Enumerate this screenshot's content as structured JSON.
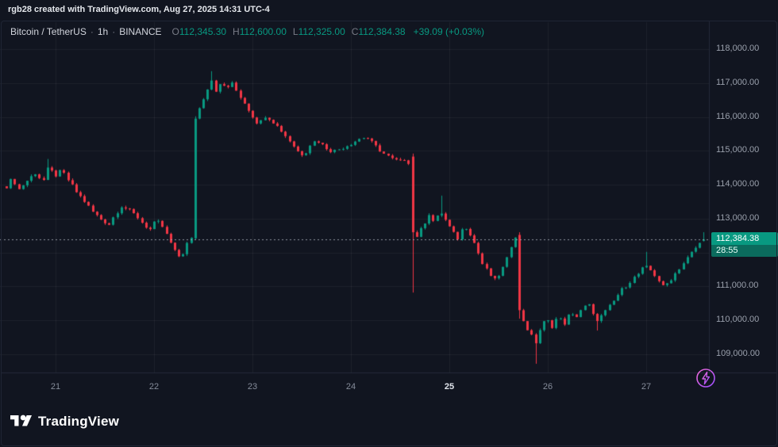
{
  "watermark": "rgb28 created with TradingView.com, Aug 27, 2025 14:31 UTC-4",
  "header": {
    "symbol": "Bitcoin / TetherUS",
    "sep": "·",
    "interval": "1h",
    "exchange": "BINANCE",
    "ohlc": [
      {
        "label": "O",
        "value": "112,345.30"
      },
      {
        "label": "H",
        "value": "112,600.00"
      },
      {
        "label": "L",
        "value": "112,325.00"
      },
      {
        "label": "C",
        "value": "112,384.38"
      }
    ],
    "change": "+39.09 (+0.03%)"
  },
  "branding": {
    "logo_text": "TradingView"
  },
  "colors": {
    "up": "#089981",
    "down": "#f23645",
    "grid": "rgba(255,255,255,0.055)",
    "axis_border": "#242a3a",
    "price_line": "rgba(178,183,192,0.8)",
    "badge_bg": "#089981",
    "countdown_bg": "#0b6b5d",
    "flash": "#c84df0"
  },
  "chart_data": {
    "type": "candlestick",
    "title": "Bitcoin / TetherUS 1h BINANCE",
    "exchange": "BINANCE",
    "interval": "1h",
    "last_price": 112384.38,
    "last_price_label": "112,384.38",
    "countdown": "28:55",
    "last_candle": {
      "open": 112345.3,
      "high": 112600.0,
      "low": 112325.0,
      "close": 112384.38
    },
    "x_unit": "day of August 2025",
    "x_domain": [
      20.5,
      27.583
    ],
    "y_domain": [
      108580,
      118750
    ],
    "candles_per_day": 24,
    "y_ticks": [
      {
        "value": 118000,
        "label": "118,000.00"
      },
      {
        "value": 117000,
        "label": "117,000.00"
      },
      {
        "value": 116000,
        "label": "116,000.00"
      },
      {
        "value": 115000,
        "label": "115,000.00"
      },
      {
        "value": 114000,
        "label": "114,000.00"
      },
      {
        "value": 113000,
        "label": "113,000.00"
      },
      {
        "value": 112000,
        "label": "112,000.00"
      },
      {
        "value": 111000,
        "label": "111,000.00"
      },
      {
        "value": 110000,
        "label": "110,000.00"
      },
      {
        "value": 109000,
        "label": "109,000.00"
      }
    ],
    "x_ticks": [
      {
        "t": 21,
        "label": "21",
        "bold": false
      },
      {
        "t": 22,
        "label": "22",
        "bold": false
      },
      {
        "t": 23,
        "label": "23",
        "bold": false
      },
      {
        "t": 24,
        "label": "24",
        "bold": false
      },
      {
        "t": 25,
        "label": "25",
        "bold": true
      },
      {
        "t": 26,
        "label": "26",
        "bold": false
      },
      {
        "t": 27,
        "label": "27",
        "bold": false
      }
    ],
    "waypoints": [
      [
        20.5,
        113950
      ],
      [
        20.56,
        114200
      ],
      [
        20.62,
        113850
      ],
      [
        20.7,
        114100
      ],
      [
        20.79,
        114350
      ],
      [
        20.87,
        114100
      ],
      [
        20.92,
        114480
      ],
      [
        21.0,
        114280
      ],
      [
        21.06,
        114420
      ],
      [
        21.13,
        114120
      ],
      [
        21.21,
        113780
      ],
      [
        21.29,
        113520
      ],
      [
        21.38,
        113180
      ],
      [
        21.46,
        112980
      ],
      [
        21.54,
        112830
      ],
      [
        21.6,
        113120
      ],
      [
        21.67,
        113380
      ],
      [
        21.75,
        113230
      ],
      [
        21.83,
        113050
      ],
      [
        21.9,
        112800
      ],
      [
        21.96,
        112680
      ],
      [
        22.02,
        112950
      ],
      [
        22.08,
        112780
      ],
      [
        22.15,
        112380
      ],
      [
        22.21,
        112020
      ],
      [
        22.27,
        111830
      ],
      [
        22.33,
        112250
      ],
      [
        22.38,
        112420
      ],
      [
        22.42,
        115950
      ],
      [
        22.47,
        116350
      ],
      [
        22.52,
        116700
      ],
      [
        22.58,
        117120
      ],
      [
        22.63,
        116750
      ],
      [
        22.68,
        117000
      ],
      [
        22.73,
        116850
      ],
      [
        22.79,
        116980
      ],
      [
        22.85,
        116700
      ],
      [
        22.92,
        116400
      ],
      [
        23.0,
        116020
      ],
      [
        23.06,
        115780
      ],
      [
        23.13,
        116050
      ],
      [
        23.2,
        115880
      ],
      [
        23.29,
        115600
      ],
      [
        23.38,
        115280
      ],
      [
        23.46,
        114980
      ],
      [
        23.52,
        114870
      ],
      [
        23.58,
        115180
      ],
      [
        23.65,
        115320
      ],
      [
        23.73,
        115120
      ],
      [
        23.81,
        114980
      ],
      [
        23.9,
        115080
      ],
      [
        24.0,
        115220
      ],
      [
        24.08,
        115350
      ],
      [
        24.15,
        115420
      ],
      [
        24.23,
        115180
      ],
      [
        24.33,
        114920
      ],
      [
        24.42,
        114750
      ],
      [
        24.5,
        114680
      ],
      [
        24.58,
        114830
      ],
      [
        24.625,
        112600
      ],
      [
        24.67,
        112480
      ],
      [
        24.73,
        112780
      ],
      [
        24.79,
        113150
      ],
      [
        24.85,
        112850
      ],
      [
        24.9,
        113250
      ],
      [
        24.96,
        112950
      ],
      [
        25.02,
        112650
      ],
      [
        25.08,
        112400
      ],
      [
        25.15,
        112820
      ],
      [
        25.21,
        112550
      ],
      [
        25.27,
        112150
      ],
      [
        25.33,
        111680
      ],
      [
        25.4,
        111380
      ],
      [
        25.46,
        111180
      ],
      [
        25.52,
        111420
      ],
      [
        25.58,
        111780
      ],
      [
        25.63,
        112250
      ],
      [
        25.67,
        112520
      ],
      [
        25.71,
        110300
      ],
      [
        25.77,
        109850
      ],
      [
        25.83,
        109550
      ],
      [
        25.875,
        109350
      ],
      [
        25.92,
        109750
      ],
      [
        25.98,
        110050
      ],
      [
        26.04,
        109820
      ],
      [
        26.1,
        110120
      ],
      [
        26.16,
        109880
      ],
      [
        26.22,
        110200
      ],
      [
        26.28,
        110080
      ],
      [
        26.35,
        110380
      ],
      [
        26.42,
        110450
      ],
      [
        26.48,
        109980
      ],
      [
        26.54,
        110120
      ],
      [
        26.6,
        110320
      ],
      [
        26.67,
        110580
      ],
      [
        26.73,
        110850
      ],
      [
        26.79,
        111020
      ],
      [
        26.85,
        111200
      ],
      [
        26.92,
        111380
      ],
      [
        26.98,
        111600
      ],
      [
        27.04,
        111480
      ],
      [
        27.1,
        111280
      ],
      [
        27.17,
        110980
      ],
      [
        27.23,
        111150
      ],
      [
        27.29,
        111380
      ],
      [
        27.35,
        111600
      ],
      [
        27.42,
        111850
      ],
      [
        27.48,
        112080
      ],
      [
        27.54,
        112260
      ],
      [
        27.583,
        112384.38
      ]
    ],
    "overrides": [
      {
        "t": 20.92,
        "high": 114760
      },
      {
        "t": 22.417,
        "open": 112420,
        "low": 112380,
        "close": 115950,
        "high": 116020
      },
      {
        "t": 22.583,
        "high": 117350
      },
      {
        "t": 24.625,
        "open": 114830,
        "high": 114920,
        "low": 110820,
        "close": 112600
      },
      {
        "t": 24.9,
        "high": 113680
      },
      {
        "t": 25.708,
        "open": 112520,
        "high": 112600,
        "low": 110050,
        "close": 110300
      },
      {
        "t": 25.875,
        "low": 108720
      },
      {
        "t": 26.48,
        "low": 109700
      },
      {
        "t": 26.98,
        "high": 112020
      },
      {
        "t": 27.583,
        "open": 112345.3,
        "high": 112600,
        "low": 112325,
        "close": 112384.38
      }
    ]
  }
}
